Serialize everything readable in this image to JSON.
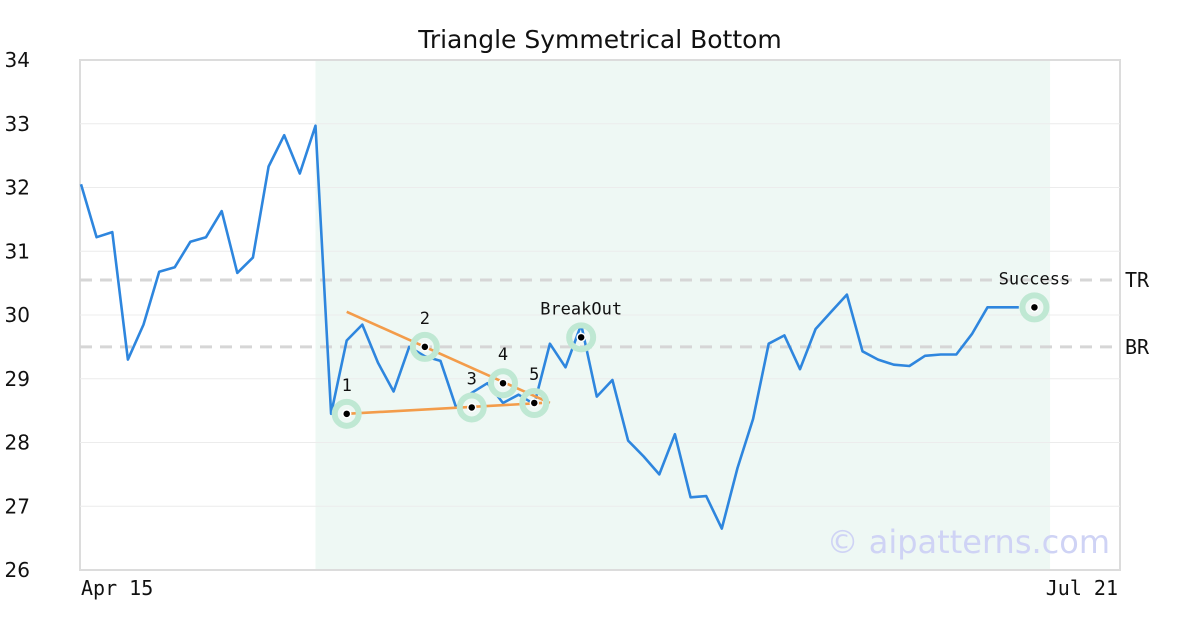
{
  "chart_data": {
    "type": "line",
    "title": "Triangle Symmetrical Bottom",
    "xlabel": "",
    "ylabel": "",
    "ylim": [
      26,
      34
    ],
    "yticks": [
      26,
      27,
      28,
      29,
      30,
      31,
      32,
      33,
      34
    ],
    "xtick_labels": [
      "Apr 15",
      "Jul 21"
    ],
    "grid": true,
    "series": [
      {
        "values": [
          32.05,
          31.22,
          31.3,
          29.3,
          29.85,
          30.68,
          30.75,
          31.15,
          31.22,
          31.63,
          30.66,
          30.9,
          32.33,
          32.82,
          32.22,
          32.97,
          28.45,
          29.6,
          29.85,
          29.25,
          28.8,
          29.5,
          29.35,
          29.28,
          28.55,
          28.78,
          28.93,
          28.62,
          28.75,
          28.6,
          29.55,
          29.18,
          29.85,
          28.72,
          28.98,
          28.03,
          27.78,
          27.5,
          28.13,
          27.14,
          27.16,
          26.65,
          27.6,
          28.37,
          29.55,
          29.68,
          29.15,
          29.78,
          30.05,
          30.32,
          29.43,
          29.3,
          29.22,
          29.2,
          29.36,
          29.38,
          29.38,
          29.7,
          30.12,
          30.12,
          30.12
        ],
        "color": "#2e86de"
      }
    ],
    "pattern_region": {
      "start_index": 15,
      "end_index": 62,
      "color": "#e8f5f0"
    },
    "levels": [
      {
        "label": "TR",
        "value": 30.55
      },
      {
        "label": "BR",
        "value": 29.5
      }
    ],
    "trendlines": [
      {
        "from": [
          17,
          30.05
        ],
        "to": [
          30,
          28.62
        ],
        "color": "#f39c4a"
      },
      {
        "from": [
          17,
          28.45
        ],
        "to": [
          29.5,
          28.62
        ],
        "color": "#f39c4a"
      }
    ],
    "points": [
      {
        "label": "1",
        "x": 17,
        "y": 28.45
      },
      {
        "label": "2",
        "x": 22,
        "y": 29.5
      },
      {
        "label": "3",
        "x": 25,
        "y": 28.55
      },
      {
        "label": "4",
        "x": 27,
        "y": 28.93
      },
      {
        "label": "5",
        "x": 29,
        "y": 28.62
      },
      {
        "label": "BreakOut",
        "x": 32,
        "y": 29.65
      },
      {
        "label": "Success",
        "x": 61,
        "y": 30.12
      }
    ]
  },
  "watermark": "© aipatterns.com",
  "colors": {
    "line": "#2e86de",
    "trend": "#f39c4a",
    "marker_halo": "#bfe8d3",
    "region": "#eef8f4",
    "watermark": "#cfd3f5",
    "level_line": "#d6d6d6"
  }
}
